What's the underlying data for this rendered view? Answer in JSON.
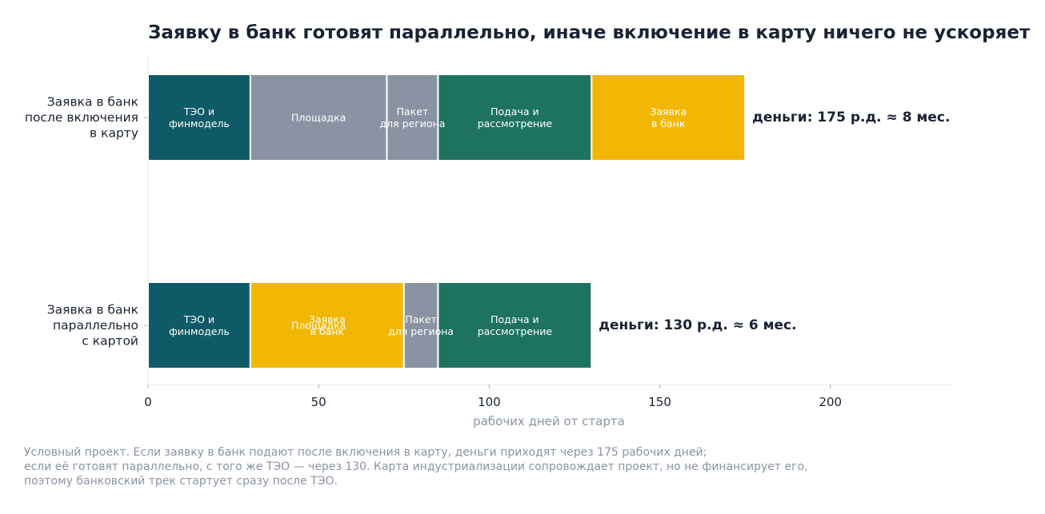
{
  "chart_data": {
    "type": "bar",
    "orientation": "horizontal",
    "stacked": true,
    "title": "Заявку в банк готовят параллельно, иначе включение в карту ничего не ускоряет",
    "xlabel": "рабочих дней от старта",
    "xlim": [
      0,
      235
    ],
    "xticks": [
      0,
      50,
      100,
      150,
      200
    ],
    "grid": false,
    "colors": {
      "teo": "#0e5a66",
      "site": "#8a93a3",
      "pack": "#8a93a3",
      "submit": "#1e7360",
      "bank": "#f2b705"
    },
    "rows": [
      {
        "label": [
          "Заявка в банк",
          "после включения",
          "в карту"
        ],
        "total_label": "деньги: 175 р.д. ≈ 8 мес.",
        "segments": [
          {
            "name": [
              "ТЭО и",
              "финмодель"
            ],
            "start": 0,
            "end": 30,
            "color": "#0e5a66"
          },
          {
            "name": [
              "Площадка"
            ],
            "start": 30,
            "end": 70,
            "color": "#8a93a3"
          },
          {
            "name": [
              "Пакет",
              "для региона"
            ],
            "start": 70,
            "end": 85,
            "color": "#8a93a3"
          },
          {
            "name": [
              "Подача и",
              "рассмотрение"
            ],
            "start": 85,
            "end": 130,
            "color": "#1e7360"
          },
          {
            "name": [
              "Заявка",
              "в банк"
            ],
            "start": 130,
            "end": 175,
            "color": "#f2b705"
          }
        ]
      },
      {
        "label": [
          "Заявка в банк",
          "параллельно",
          "с картой"
        ],
        "total_label": "деньги: 130 р.д. ≈ 6 мес.",
        "segments": [
          {
            "name": [
              "ТЭО и",
              "финмодель"
            ],
            "start": 0,
            "end": 30,
            "color": "#0e5a66"
          },
          {
            "name": [
              "Площадка"
            ],
            "start": 30,
            "end": 70,
            "color": "#f2b705"
          },
          {
            "name": [
              "Заявка",
              "в банк"
            ],
            "start": 30,
            "end": 75,
            "color": "#f2b705"
          },
          {
            "name": [
              "Пакет",
              "для региона"
            ],
            "start": 75,
            "end": 85,
            "color": "#8a93a3"
          },
          {
            "name": [
              "Подача и",
              "рассмотрение"
            ],
            "start": 85,
            "end": 130,
            "color": "#1e7360"
          }
        ]
      }
    ]
  },
  "footnote": [
    "Условный проект. Если заявку в банк подают после включения в карту, деньги приходят через 175 рабочих дней;",
    "если её готовят параллельно, с того же ТЭО — через 130. Карта индустриализации сопровождает проект, но не финансирует его,",
    "поэтому банковский трек стартует сразу после ТЭО."
  ]
}
